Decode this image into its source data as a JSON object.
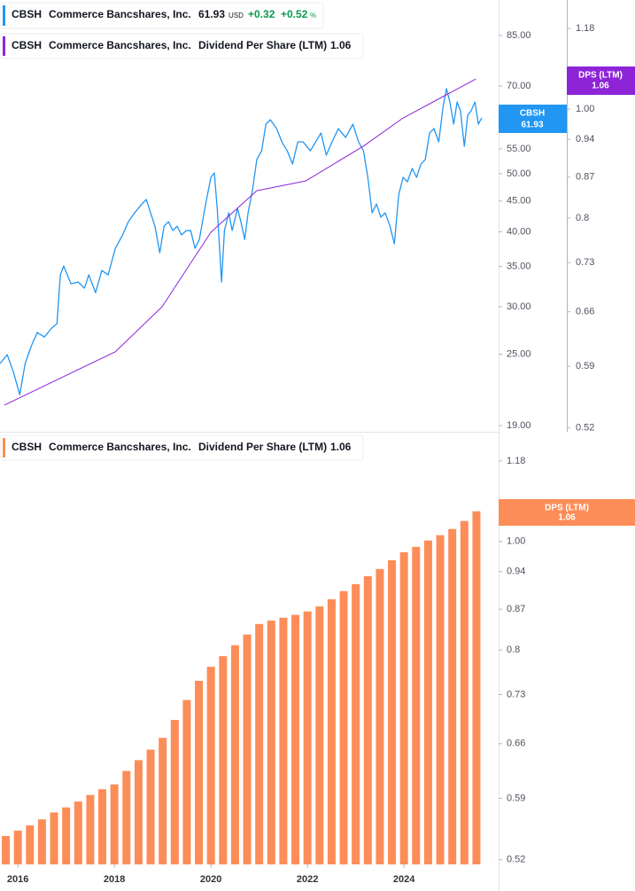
{
  "chart_data": [
    {
      "type": "line",
      "log_y": true,
      "grid": false,
      "legend": {
        "ticker": "CBSH",
        "name": "Commerce Bancshares, Inc.",
        "price": "61.93",
        "currency": "USD",
        "change": "+0.32",
        "change_pct": "+0.52",
        "pct_sign": "%",
        "dps_value": "1.06"
      },
      "price_tag": {
        "ticker": "CBSH",
        "value": "61.93"
      },
      "dps_tag": {
        "title": "DPS (LTM)",
        "value": "1.06"
      },
      "xlim": [
        2015.63,
        2025.96
      ],
      "ylim": [
        18.56,
        97.4
      ],
      "yticks": [
        {
          "value": 19,
          "label": "19.00"
        },
        {
          "value": 25,
          "label": "25.00"
        },
        {
          "value": 30,
          "label": "30.00"
        },
        {
          "value": 35,
          "label": "35.00"
        },
        {
          "value": 40,
          "label": "40.00"
        },
        {
          "value": 45,
          "label": "45.00"
        },
        {
          "value": 50,
          "label": "50.00"
        },
        {
          "value": 55,
          "label": "55.00"
        },
        {
          "value": 70,
          "label": "70.00"
        },
        {
          "value": 85,
          "label": "85.00"
        }
      ],
      "y2lim": [
        0.516,
        1.251
      ],
      "y2ticks": [
        0.52,
        0.59,
        0.66,
        0.73,
        0.8,
        0.87,
        0.94,
        {
          "value": 1,
          "label": "1.00"
        },
        1.06,
        1.18
      ],
      "series": [
        {
          "name": "Commerce Bancshares, Inc.",
          "color": "#2196f3",
          "axis": "y",
          "x": [
            2015.63,
            2015.78,
            2015.91,
            2016.04,
            2016.15,
            2016.28,
            2016.4,
            2016.55,
            2016.7,
            2016.81,
            2016.88,
            2016.95,
            2017.1,
            2017.25,
            2017.38,
            2017.47,
            2017.61,
            2017.74,
            2017.87,
            2018.02,
            2018.17,
            2018.29,
            2018.42,
            2018.57,
            2018.66,
            2018.75,
            2018.84,
            2018.94,
            2019.03,
            2019.12,
            2019.21,
            2019.3,
            2019.39,
            2019.49,
            2019.58,
            2019.67,
            2019.76,
            2019.89,
            2020.0,
            2020.07,
            2020.13,
            2020.18,
            2020.22,
            2020.28,
            2020.37,
            2020.44,
            2020.55,
            2020.62,
            2020.7,
            2020.77,
            2020.86,
            2020.95,
            2021.05,
            2021.14,
            2021.23,
            2021.36,
            2021.47,
            2021.58,
            2021.69,
            2021.8,
            2021.91,
            2022.06,
            2022.17,
            2022.28,
            2022.39,
            2022.51,
            2022.64,
            2022.79,
            2022.94,
            2023.06,
            2023.16,
            2023.25,
            2023.34,
            2023.43,
            2023.52,
            2023.61,
            2023.71,
            2023.8,
            2023.89,
            2023.98,
            2024.07,
            2024.17,
            2024.26,
            2024.35,
            2024.44,
            2024.53,
            2024.62,
            2024.72,
            2024.81,
            2024.88,
            2024.95,
            2025.03,
            2025.1,
            2025.17,
            2025.25,
            2025.32,
            2025.39,
            2025.47,
            2025.54,
            2025.61
          ],
          "values": [
            24.11,
            24.95,
            23.31,
            21.4,
            24.11,
            25.81,
            27.17,
            26.71,
            27.63,
            28.11,
            33.9,
            35.07,
            32.76,
            32.98,
            32.21,
            33.9,
            31.66,
            34.48,
            33.9,
            37.54,
            39.51,
            41.58,
            43.02,
            44.51,
            45.28,
            43.02,
            40.88,
            36.91,
            40.88,
            41.58,
            40.19,
            40.88,
            39.51,
            40.19,
            40.19,
            37.54,
            38.84,
            44.51,
            49.3,
            50.15,
            43.76,
            37.54,
            32.98,
            40.19,
            43.02,
            40.19,
            43.76,
            41.58,
            38.84,
            43.02,
            46.84,
            52.77,
            54.6,
            60.47,
            61.51,
            59.45,
            56.49,
            54.6,
            51.88,
            56.49,
            56.49,
            54.6,
            56.49,
            58.45,
            53.68,
            56.49,
            59.45,
            57.46,
            60.47,
            56.49,
            54.6,
            49.3,
            43.02,
            44.51,
            42.3,
            43.02,
            40.88,
            38.19,
            46.05,
            49.3,
            48.47,
            51.01,
            49.3,
            51.88,
            52.77,
            58.45,
            59.45,
            56.49,
            64.73,
            69.29,
            65.84,
            60.47,
            65.84,
            63.64,
            55.54,
            62.57,
            63.64,
            65.84,
            60.47,
            61.93
          ]
        },
        {
          "name": "Dividend Per Share (LTM)",
          "color": "#8e24d8",
          "axis": "y2",
          "x": [
            2015.72,
            2018.02,
            2018.99,
            2020.0,
            2020.95,
            2021.96,
            2023.16,
            2023.98,
            2025.49
          ],
          "values": [
            0.545,
            0.608,
            0.667,
            0.777,
            0.846,
            0.863,
            0.927,
            0.982,
            1.064
          ]
        }
      ]
    },
    {
      "type": "bar",
      "log_y": true,
      "grid": false,
      "legend": {
        "ticker": "CBSH",
        "name": "Commerce Bancshares, Inc.",
        "dps_value": "1.06"
      },
      "dps_tag": {
        "title": "DPS (LTM)",
        "value": "1.06"
      },
      "xlim": [
        2015.63,
        2025.96
      ],
      "xticks": [
        2016,
        2018,
        2020,
        2022,
        2024
      ],
      "ylim": [
        0.515,
        1.246
      ],
      "yticks": [
        0.52,
        0.59,
        0.66,
        0.73,
        0.8,
        0.87,
        0.94,
        {
          "value": 1,
          "label": "1.00"
        },
        1.06,
        1.18
      ],
      "series": [
        {
          "name": "Dividend Per Share (LTM)",
          "color": "#fd8d58",
          "x": [
            2015.75,
            2016,
            2016.25,
            2016.5,
            2016.75,
            2017,
            2017.25,
            2017.5,
            2017.75,
            2018,
            2018.25,
            2018.5,
            2018.75,
            2019,
            2019.25,
            2019.5,
            2019.75,
            2020,
            2020.25,
            2020.5,
            2020.75,
            2021,
            2021.25,
            2021.5,
            2021.75,
            2022,
            2022.25,
            2022.5,
            2022.75,
            2023,
            2023.25,
            2023.5,
            2023.75,
            2024,
            2024.25,
            2024.5,
            2024.75,
            2025,
            2025.25,
            2025.5
          ],
          "values": [
            0.546,
            0.552,
            0.558,
            0.565,
            0.573,
            0.579,
            0.586,
            0.594,
            0.601,
            0.607,
            0.624,
            0.638,
            0.652,
            0.668,
            0.693,
            0.722,
            0.751,
            0.773,
            0.79,
            0.808,
            0.826,
            0.844,
            0.85,
            0.855,
            0.86,
            0.866,
            0.875,
            0.888,
            0.903,
            0.916,
            0.931,
            0.945,
            0.962,
            0.978,
            0.989,
            1.002,
            1.013,
            1.026,
            1.043,
            1.064
          ]
        }
      ]
    }
  ]
}
